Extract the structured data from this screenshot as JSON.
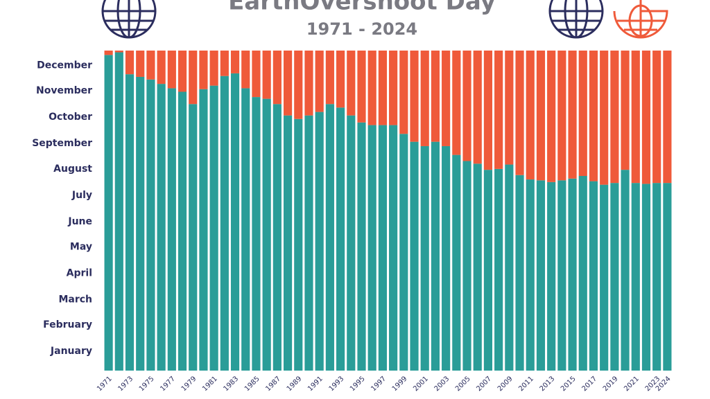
{
  "chart_data": {
    "type": "stacked_bar",
    "title": "EarthOvershoot Day",
    "subtitle": "1971 - 2024",
    "categories": [
      "1971",
      null,
      "1973",
      null,
      "1975",
      null,
      "1977",
      null,
      "1979",
      null,
      "1981",
      null,
      "1983",
      null,
      "1985",
      null,
      "1987",
      null,
      "1989",
      null,
      "1991",
      null,
      "1993",
      null,
      "1995",
      null,
      "1997",
      null,
      "1999",
      null,
      "2001",
      null,
      "2003",
      null,
      "2005",
      null,
      "2007",
      null,
      "2009",
      null,
      "2011",
      null,
      "2013",
      null,
      "2015",
      null,
      "2017",
      null,
      "2019",
      null,
      "2021",
      null,
      "2023",
      "2024"
    ],
    "series": [
      {
        "color": "#2a9d98",
        "values": [
          360,
          363,
          338,
          335,
          332,
          327,
          322,
          318,
          304,
          321,
          325,
          336,
          339,
          322,
          312,
          310,
          304,
          291,
          287,
          291,
          295,
          304,
          300,
          291,
          283,
          280,
          280,
          280,
          270,
          261,
          256,
          261,
          256,
          246,
          239,
          236,
          229,
          230,
          235,
          223,
          218,
          217,
          215,
          217,
          219,
          222,
          216,
          212,
          214,
          229,
          214,
          213,
          214,
          214
        ]
      },
      {
        "color": "#ef5a3a",
        "values": [
          5,
          2,
          27,
          30,
          33,
          38,
          43,
          47,
          61,
          44,
          40,
          29,
          26,
          43,
          53,
          55,
          61,
          74,
          78,
          74,
          70,
          61,
          65,
          74,
          82,
          85,
          85,
          85,
          95,
          104,
          109,
          104,
          109,
          119,
          126,
          129,
          136,
          135,
          130,
          142,
          147,
          148,
          150,
          148,
          146,
          143,
          149,
          153,
          151,
          136,
          151,
          152,
          151,
          151
        ]
      }
    ],
    "ylim": [
      0,
      365
    ],
    "yticks": [
      {
        "value": 22,
        "label": "January"
      },
      {
        "value": 52,
        "label": "February"
      },
      {
        "value": 81,
        "label": "March"
      },
      {
        "value": 111,
        "label": "April"
      },
      {
        "value": 141,
        "label": "May"
      },
      {
        "value": 170,
        "label": "June"
      },
      {
        "value": 200,
        "label": "July"
      },
      {
        "value": 230,
        "label": "August"
      },
      {
        "value": 259,
        "label": "September"
      },
      {
        "value": 289,
        "label": "October"
      },
      {
        "value": 319,
        "label": "November"
      },
      {
        "value": 348,
        "label": "December"
      }
    ]
  }
}
